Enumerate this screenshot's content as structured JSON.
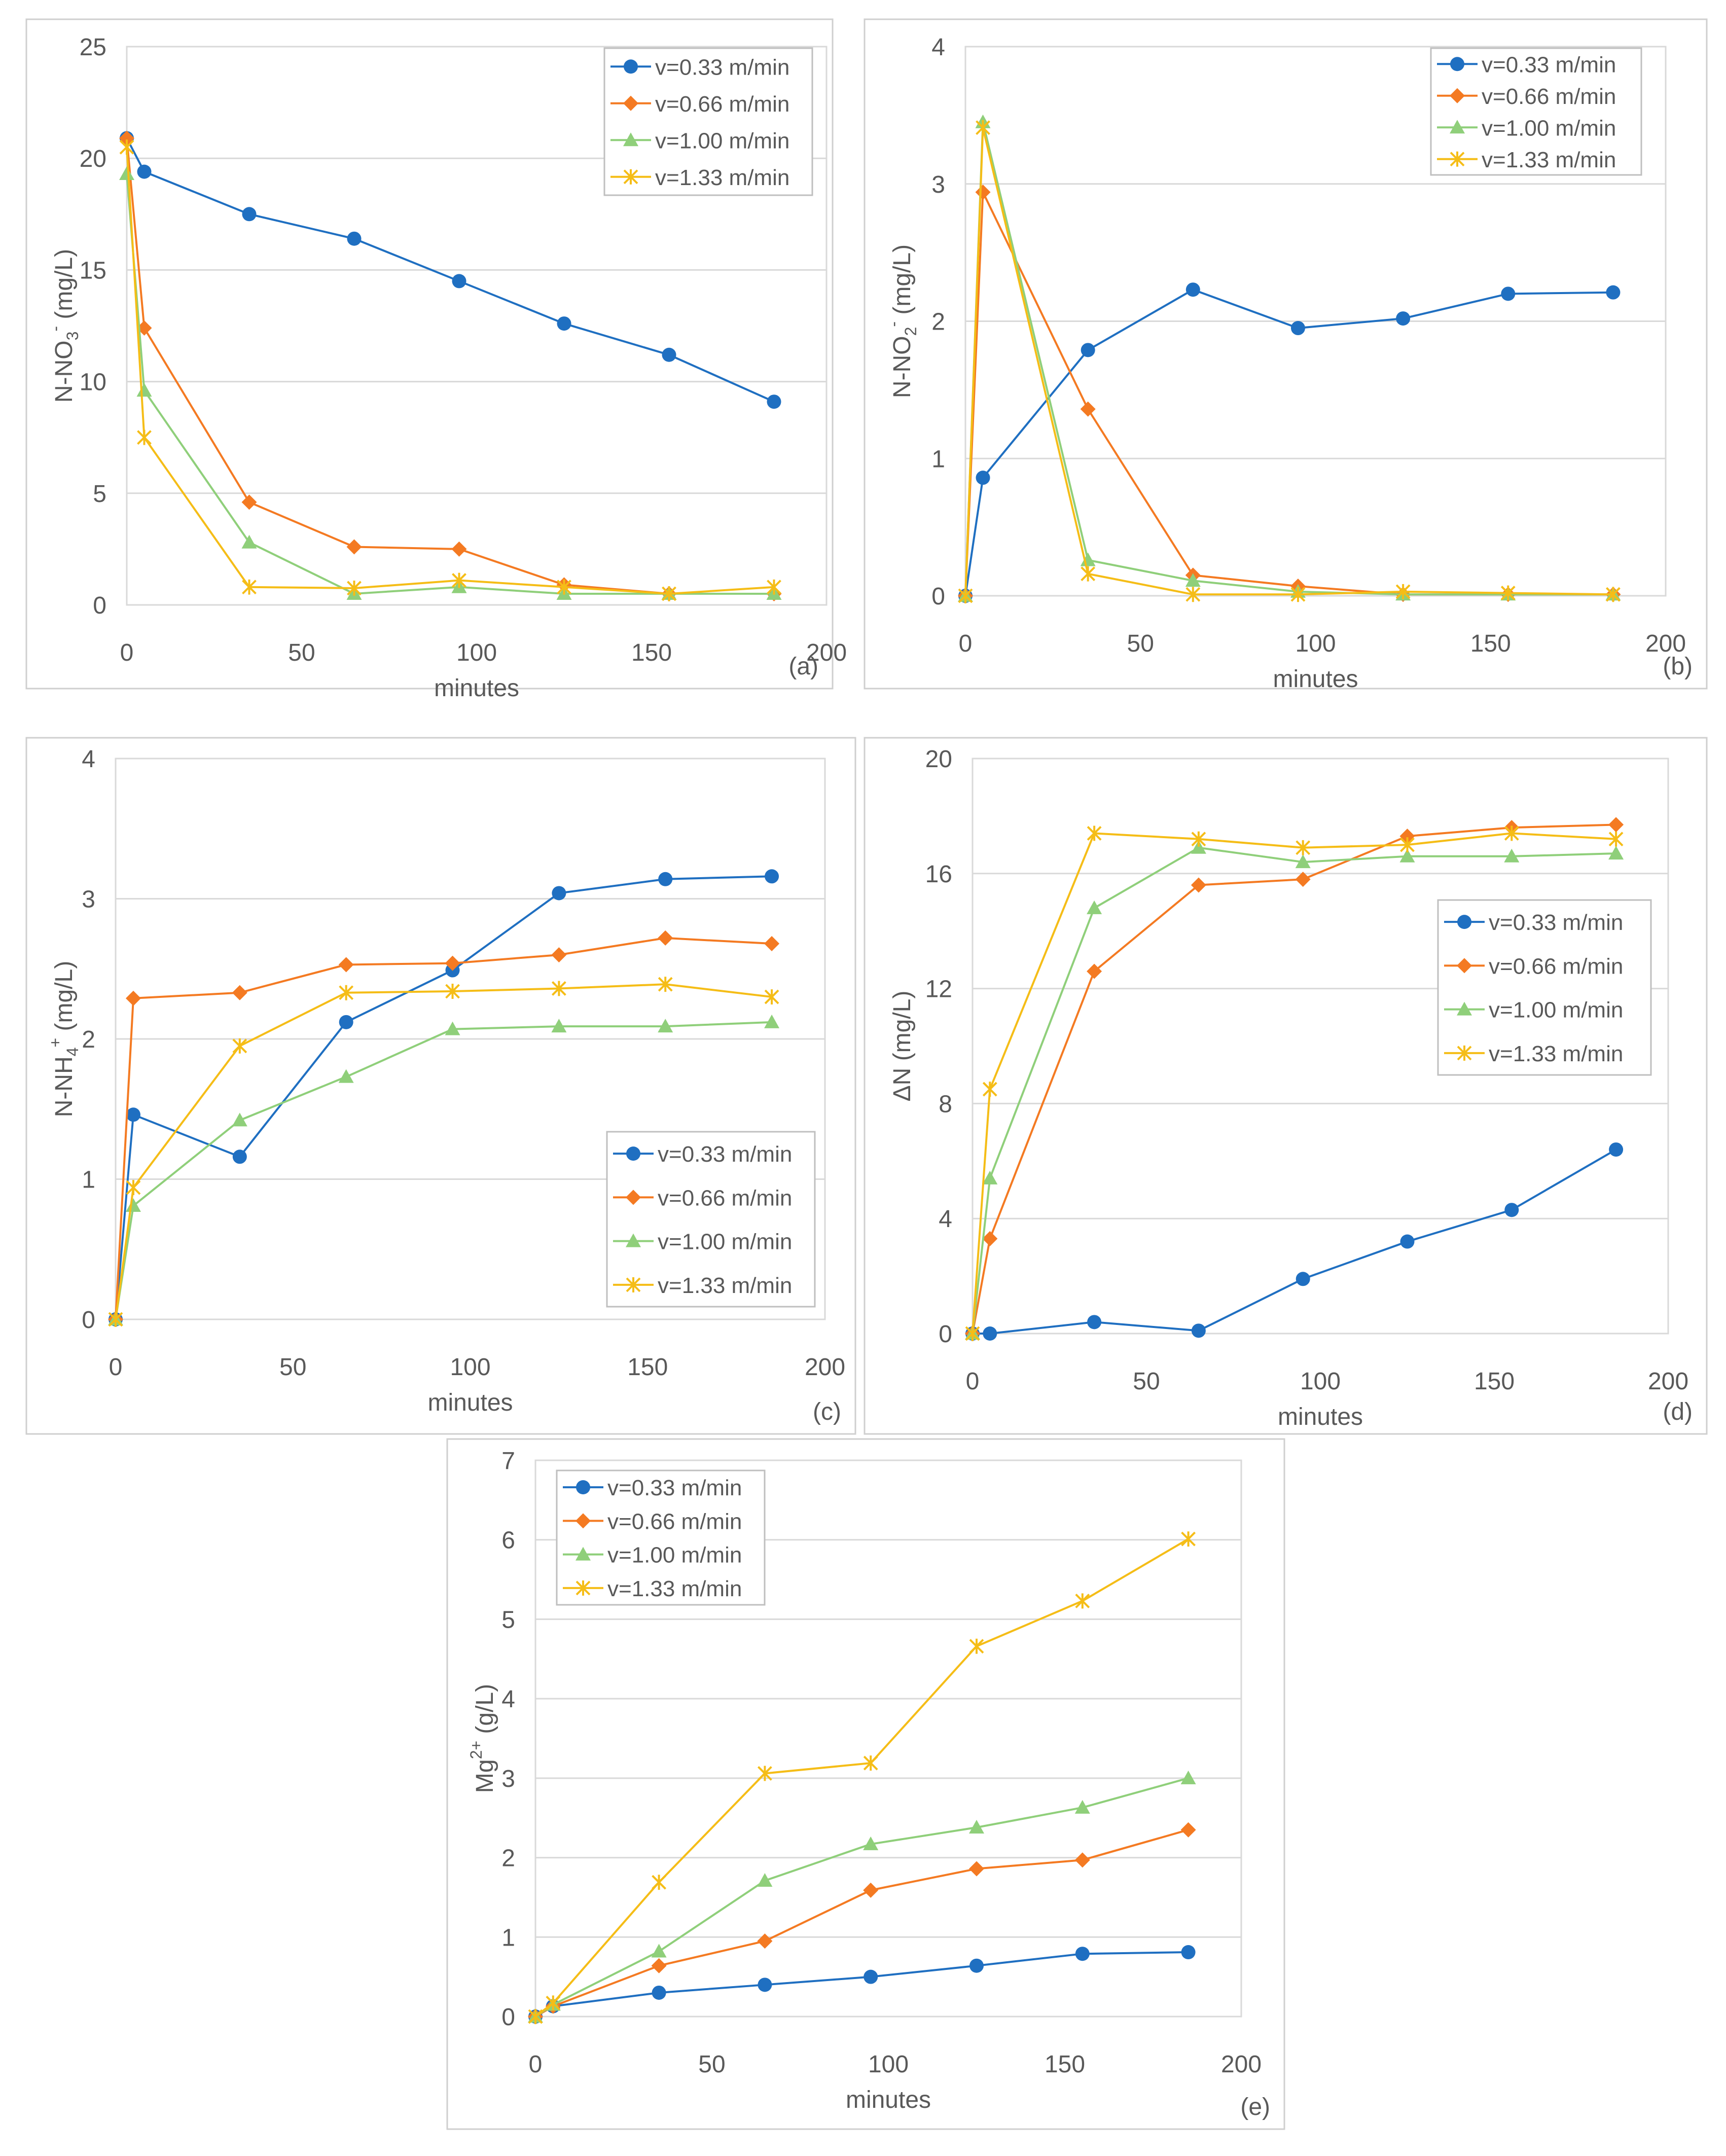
{
  "colors": {
    "v033": "#1f6fc1",
    "v066": "#f47a22",
    "v100": "#8fcf7a",
    "v133": "#f5bd17",
    "grid": "#d9d9d9",
    "text": "#595959",
    "frame": "#cfcfcf"
  },
  "chart_data": [
    {
      "type": "line",
      "panel_label": "(a)",
      "xlabel": "minutes",
      "ylabel": "N-NO3- (mg/L)",
      "ylabel_parts": {
        "main": "N-NO",
        "sub": "3",
        "sup": "-",
        "unit": " (mg/L)"
      },
      "xlim": [
        0,
        200
      ],
      "ylim": [
        0,
        25
      ],
      "xticks": [
        0,
        50,
        100,
        150,
        200
      ],
      "yticks": [
        0,
        5,
        10,
        15,
        20,
        25
      ],
      "grid": true,
      "legend_position": "top-right",
      "series": [
        {
          "name": "v=0.33 m/min",
          "marker": "circle",
          "x": [
            0,
            5,
            35,
            65,
            95,
            125,
            155,
            185
          ],
          "y": [
            20.9,
            19.4,
            17.5,
            16.4,
            14.5,
            12.6,
            11.2,
            9.1
          ]
        },
        {
          "name": "v=0.66 m/min",
          "marker": "diamond",
          "x": [
            0,
            5,
            35,
            65,
            95,
            125,
            155,
            185
          ],
          "y": [
            20.9,
            12.4,
            4.6,
            2.6,
            2.5,
            0.9,
            0.5,
            0.5
          ]
        },
        {
          "name": "v=1.00 m/min",
          "marker": "triangle",
          "x": [
            0,
            5,
            35,
            65,
            95,
            125,
            155,
            185
          ],
          "y": [
            19.3,
            9.6,
            2.8,
            0.5,
            0.8,
            0.5,
            0.5,
            0.5
          ]
        },
        {
          "name": "v=1.33 m/min",
          "marker": "star",
          "x": [
            0,
            5,
            35,
            65,
            95,
            125,
            155,
            185
          ],
          "y": [
            20.5,
            7.5,
            0.8,
            0.75,
            1.1,
            0.8,
            0.5,
            0.8
          ]
        }
      ]
    },
    {
      "type": "line",
      "panel_label": "(b)",
      "xlabel": "minutes",
      "ylabel": "N-NO2- (mg/L)",
      "ylabel_parts": {
        "main": "N-NO",
        "sub": "2",
        "sup": "-",
        "unit": " (mg/L)"
      },
      "xlim": [
        0,
        200
      ],
      "ylim": [
        0,
        4
      ],
      "xticks": [
        0,
        50,
        100,
        150,
        200
      ],
      "yticks": [
        0,
        1,
        2,
        3,
        4
      ],
      "grid": true,
      "legend_position": "top-right",
      "series": [
        {
          "name": "v=0.33 m/min",
          "marker": "circle",
          "x": [
            0,
            5,
            35,
            65,
            95,
            125,
            155,
            185
          ],
          "y": [
            0,
            0.86,
            1.79,
            2.23,
            1.95,
            2.02,
            2.2,
            2.21
          ]
        },
        {
          "name": "v=0.66 m/min",
          "marker": "diamond",
          "x": [
            0,
            5,
            35,
            65,
            95,
            125,
            155,
            185
          ],
          "y": [
            0,
            2.94,
            1.36,
            0.15,
            0.07,
            0.01,
            0.01,
            0.01
          ]
        },
        {
          "name": "v=1.00 m/min",
          "marker": "triangle",
          "x": [
            0,
            5,
            35,
            65,
            95,
            125,
            155,
            185
          ],
          "y": [
            0,
            3.45,
            0.26,
            0.11,
            0.03,
            0.01,
            0.01,
            0.01
          ]
        },
        {
          "name": "v=1.33 m/min",
          "marker": "star",
          "x": [
            0,
            5,
            35,
            65,
            95,
            125,
            155,
            185
          ],
          "y": [
            0,
            3.41,
            0.16,
            0.01,
            0.01,
            0.03,
            0.02,
            0.01
          ]
        }
      ]
    },
    {
      "type": "line",
      "panel_label": "(c)",
      "xlabel": "minutes",
      "ylabel": "N-NH4+ (mg/L)",
      "ylabel_parts": {
        "main": "N-NH",
        "sub": "4",
        "sup": "+",
        "unit": " (mg/L)"
      },
      "xlim": [
        0,
        200
      ],
      "ylim": [
        0,
        4
      ],
      "xticks": [
        0,
        50,
        100,
        150,
        200
      ],
      "yticks": [
        0,
        1,
        2,
        3,
        4
      ],
      "grid": true,
      "legend_position": "bottom-right",
      "series": [
        {
          "name": "v=0.33 m/min",
          "marker": "circle",
          "x": [
            0,
            5,
            35,
            65,
            95,
            125,
            155,
            185
          ],
          "y": [
            0,
            1.46,
            1.16,
            2.12,
            2.49,
            3.04,
            3.14,
            3.16
          ]
        },
        {
          "name": "v=0.66 m/min",
          "marker": "diamond",
          "x": [
            0,
            5,
            35,
            65,
            95,
            125,
            155,
            185
          ],
          "y": [
            0,
            2.29,
            2.33,
            2.53,
            2.54,
            2.6,
            2.72,
            2.68
          ]
        },
        {
          "name": "v=1.00 m/min",
          "marker": "triangle",
          "x": [
            0,
            5,
            35,
            65,
            95,
            125,
            155,
            185
          ],
          "y": [
            0,
            0.81,
            1.42,
            1.73,
            2.07,
            2.09,
            2.09,
            2.12
          ]
        },
        {
          "name": "v=1.33 m/min",
          "marker": "star",
          "x": [
            0,
            5,
            35,
            65,
            95,
            125,
            155,
            185
          ],
          "y": [
            0,
            0.94,
            1.95,
            2.33,
            2.34,
            2.36,
            2.39,
            2.3
          ]
        }
      ]
    },
    {
      "type": "line",
      "panel_label": "(d)",
      "xlabel": "minutes",
      "ylabel": "ΔN (mg/L)",
      "ylabel_parts": {
        "main": "ΔN",
        "sub": "",
        "sup": "",
        "unit": " (mg/L)"
      },
      "xlim": [
        0,
        200
      ],
      "ylim": [
        0,
        20
      ],
      "xticks": [
        0,
        50,
        100,
        150,
        200
      ],
      "yticks": [
        0,
        4,
        8,
        12,
        16,
        20
      ],
      "grid": true,
      "legend_position": "right",
      "series": [
        {
          "name": "v=0.33 m/min",
          "marker": "circle",
          "x": [
            0,
            5,
            35,
            65,
            95,
            125,
            155,
            185
          ],
          "y": [
            0,
            0,
            0.4,
            0.1,
            1.9,
            3.2,
            4.3,
            6.4
          ]
        },
        {
          "name": "v=0.66 m/min",
          "marker": "diamond",
          "x": [
            0,
            5,
            35,
            65,
            95,
            125,
            155,
            185
          ],
          "y": [
            0,
            3.3,
            12.6,
            15.6,
            15.8,
            17.3,
            17.6,
            17.7
          ]
        },
        {
          "name": "v=1.00 m/min",
          "marker": "triangle",
          "x": [
            0,
            5,
            35,
            65,
            95,
            125,
            155,
            185
          ],
          "y": [
            0,
            5.4,
            14.8,
            16.9,
            16.4,
            16.6,
            16.6,
            16.7
          ]
        },
        {
          "name": "v=1.33 m/min",
          "marker": "star",
          "x": [
            0,
            5,
            35,
            65,
            95,
            125,
            155,
            185
          ],
          "y": [
            0,
            8.5,
            17.4,
            17.2,
            16.9,
            17.0,
            17.4,
            17.2
          ]
        }
      ]
    },
    {
      "type": "line",
      "panel_label": "(e)",
      "xlabel": "minutes",
      "ylabel": "Mg2+ (g/L)",
      "ylabel_parts": {
        "main": "Mg",
        "sub": "",
        "sup": "2+",
        "unit": " (g/L)"
      },
      "xlim": [
        0,
        200
      ],
      "ylim": [
        0,
        7
      ],
      "xticks": [
        0,
        50,
        100,
        150,
        200
      ],
      "yticks": [
        0,
        1,
        2,
        3,
        4,
        5,
        6,
        7
      ],
      "grid": true,
      "legend_position": "top-left",
      "series": [
        {
          "name": "v=0.33 m/min",
          "marker": "circle",
          "x": [
            0,
            5,
            35,
            65,
            95,
            125,
            155,
            185
          ],
          "y": [
            0,
            0.13,
            0.3,
            0.4,
            0.5,
            0.64,
            0.79,
            0.81
          ]
        },
        {
          "name": "v=0.66 m/min",
          "marker": "diamond",
          "x": [
            0,
            5,
            35,
            65,
            95,
            125,
            155,
            185
          ],
          "y": [
            0,
            0.13,
            0.64,
            0.95,
            1.59,
            1.86,
            1.97,
            2.35
          ]
        },
        {
          "name": "v=1.00 m/min",
          "marker": "triangle",
          "x": [
            0,
            5,
            35,
            65,
            95,
            125,
            155,
            185
          ],
          "y": [
            0,
            0.15,
            0.82,
            1.71,
            2.17,
            2.38,
            2.63,
            3.0
          ]
        },
        {
          "name": "v=1.33 m/min",
          "marker": "star",
          "x": [
            0,
            5,
            35,
            65,
            95,
            125,
            155,
            185
          ],
          "y": [
            0,
            0.17,
            1.69,
            3.06,
            3.19,
            4.66,
            5.23,
            6.01
          ]
        }
      ]
    }
  ]
}
